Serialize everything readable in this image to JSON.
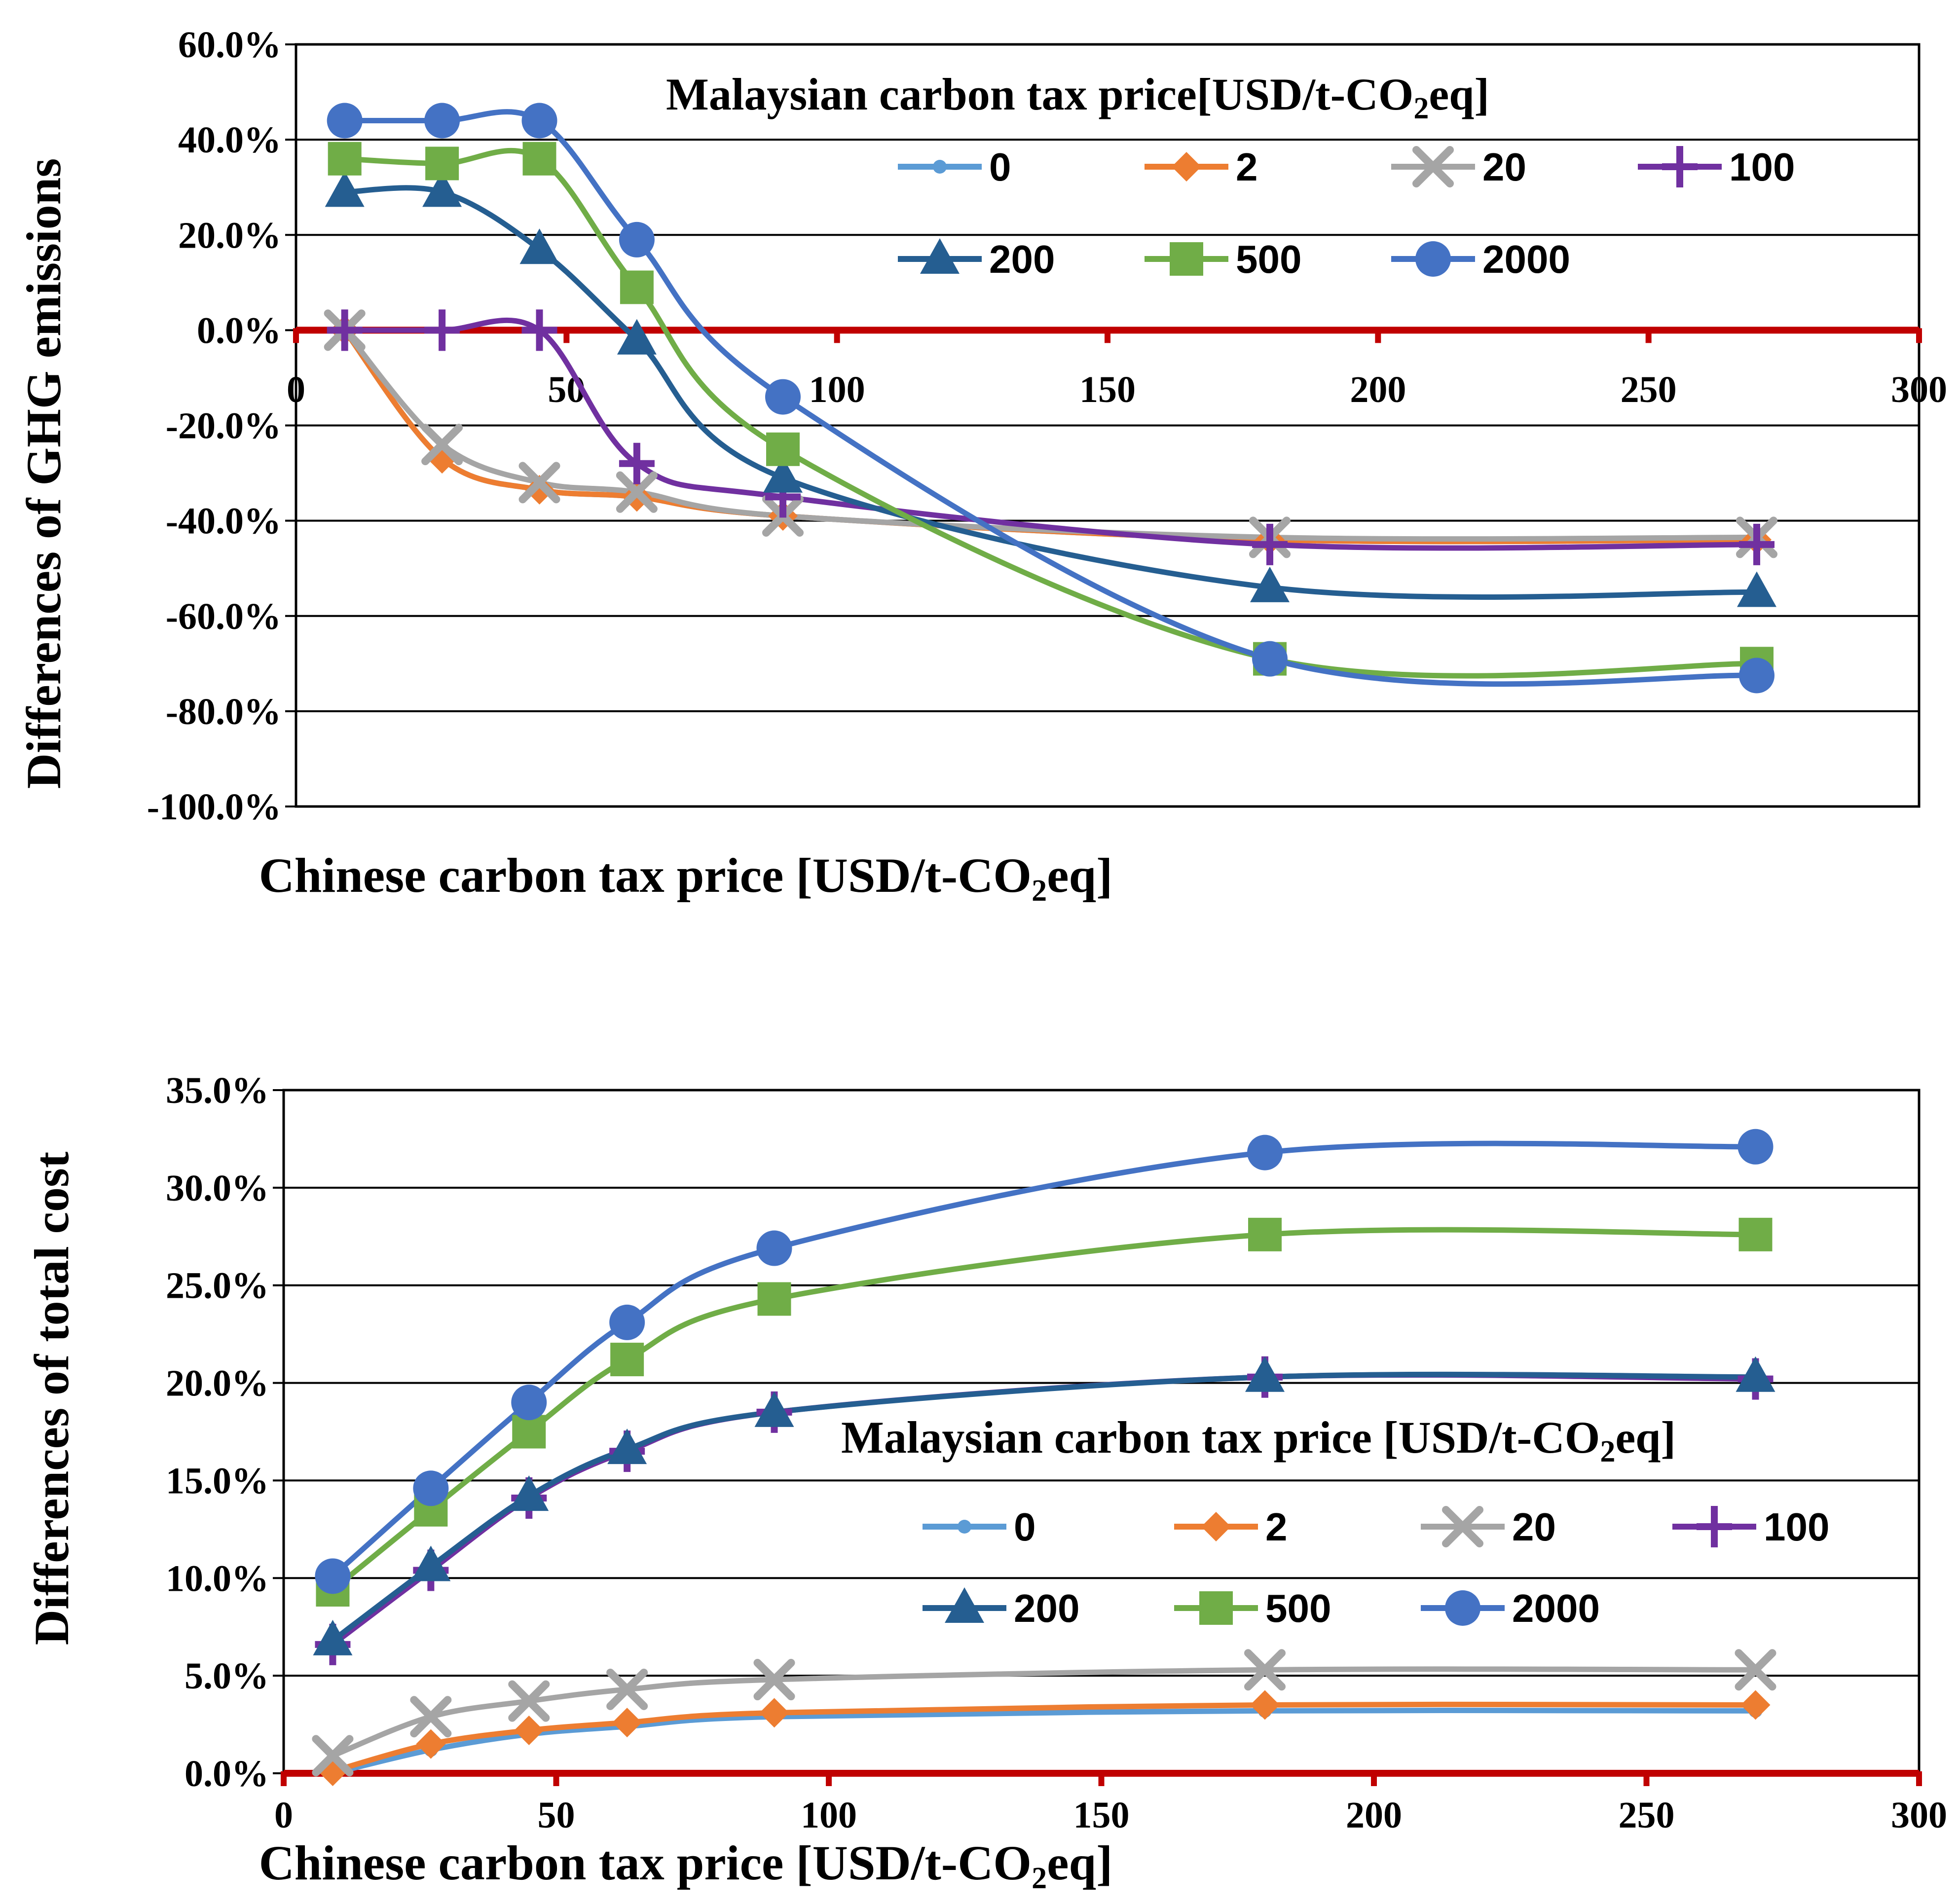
{
  "chart_data": [
    {
      "type": "line",
      "id": "ghg",
      "title": "",
      "xlabel": "Chinese carbon tax price [USD/t-CO2eq]",
      "ylabel": "Differences of GHG emissions",
      "xlim": [
        0,
        300
      ],
      "ylim": [
        -100,
        60
      ],
      "x_ticks": [
        0,
        50,
        100,
        150,
        200,
        250,
        300
      ],
      "y_ticks": [
        60,
        40,
        20,
        0,
        -20,
        -40,
        -60,
        -80,
        -100
      ],
      "x_tick_labels": [
        "0",
        "50",
        "100",
        "150",
        "200",
        "250",
        "300"
      ],
      "y_tick_labels": [
        "60.0%",
        "40.0%",
        "20.0%",
        "0.0%",
        "-20.0%",
        "-40.0%",
        "-60.0%",
        "-80.0%",
        "-100.0%"
      ],
      "legend_title": {
        "main": "Malaysian carbon tax price[USD/t-CO",
        "sub": "2",
        "tail": "eq]"
      },
      "legend_position": "top-right",
      "zero_line_color": "#c00000",
      "x": [
        9,
        27,
        45,
        63,
        90,
        180,
        270
      ],
      "series": [
        {
          "name": "0",
          "color": "#5b9bd5",
          "marker": "circle-small",
          "values": [
            0,
            -27,
            -33.5,
            -35,
            -39,
            -44,
            -44
          ]
        },
        {
          "name": "2",
          "color": "#ed7d31",
          "marker": "diamond",
          "values": [
            0,
            -27,
            -33.5,
            -35,
            -39,
            -44,
            -44
          ]
        },
        {
          "name": "20",
          "color": "#a5a5a5",
          "marker": "x",
          "values": [
            0,
            -24,
            -32,
            -34,
            -39,
            -43.5,
            -43.5
          ]
        },
        {
          "name": "100",
          "color": "#7030a0",
          "marker": "plus",
          "values": [
            0,
            0,
            0,
            -28,
            -35,
            -45,
            -45
          ]
        },
        {
          "name": "200",
          "color": "#255e91",
          "marker": "triangle",
          "values": [
            29,
            29,
            17,
            -2,
            -31,
            -54,
            -55
          ]
        },
        {
          "name": "500",
          "color": "#70ad47",
          "marker": "square",
          "values": [
            36,
            35,
            36,
            9,
            -25,
            -69,
            -70
          ]
        },
        {
          "name": "2000",
          "color": "#4472c4",
          "marker": "circle",
          "values": [
            44,
            44,
            44,
            19,
            -14,
            -69,
            -72.5
          ]
        }
      ]
    },
    {
      "type": "line",
      "id": "cost",
      "title": "",
      "xlabel": "Chinese carbon tax price [USD/t-CO2eq]",
      "ylabel": "Differences of total cost",
      "xlim": [
        0,
        300
      ],
      "ylim": [
        0,
        35
      ],
      "x_ticks": [
        0,
        50,
        100,
        150,
        200,
        250,
        300
      ],
      "y_ticks": [
        35,
        30,
        25,
        20,
        15,
        10,
        5,
        0
      ],
      "x_tick_labels": [
        "0",
        "50",
        "100",
        "150",
        "200",
        "250",
        "300"
      ],
      "y_tick_labels": [
        "35.0%",
        "30.0%",
        "25.0%",
        "20.0%",
        "15.0%",
        "10.0%",
        "5.0%",
        "0.0%"
      ],
      "legend_title": {
        "main": "Malaysian carbon tax price [USD/t-CO",
        "sub": "2",
        "tail": "eq]"
      },
      "legend_position": "center-right",
      "zero_line_color": "#c00000",
      "x": [
        9,
        27,
        45,
        63,
        90,
        180,
        270
      ],
      "series": [
        {
          "name": "0",
          "color": "#5b9bd5",
          "marker": "circle-small",
          "values": [
            0,
            1.2,
            2,
            2.4,
            2.9,
            3.2,
            3.2
          ]
        },
        {
          "name": "2",
          "color": "#ed7d31",
          "marker": "diamond",
          "values": [
            0.1,
            1.5,
            2.2,
            2.6,
            3.1,
            3.5,
            3.5
          ]
        },
        {
          "name": "20",
          "color": "#a5a5a5",
          "marker": "x",
          "values": [
            0.9,
            2.9,
            3.7,
            4.3,
            4.8,
            5.3,
            5.3
          ]
        },
        {
          "name": "100",
          "color": "#7030a0",
          "marker": "plus",
          "values": [
            6.6,
            10.4,
            14.1,
            16.5,
            18.5,
            20.3,
            20.2
          ]
        },
        {
          "name": "200",
          "color": "#255e91",
          "marker": "triangle",
          "values": [
            6.8,
            10.6,
            14.2,
            16.6,
            18.5,
            20.3,
            20.3
          ]
        },
        {
          "name": "500",
          "color": "#70ad47",
          "marker": "square",
          "values": [
            9.4,
            13.5,
            17.5,
            21.2,
            24.3,
            27.6,
            27.6
          ]
        },
        {
          "name": "2000",
          "color": "#4472c4",
          "marker": "circle",
          "values": [
            10.1,
            14.6,
            19,
            23.1,
            26.9,
            31.8,
            32.1
          ]
        }
      ]
    }
  ]
}
